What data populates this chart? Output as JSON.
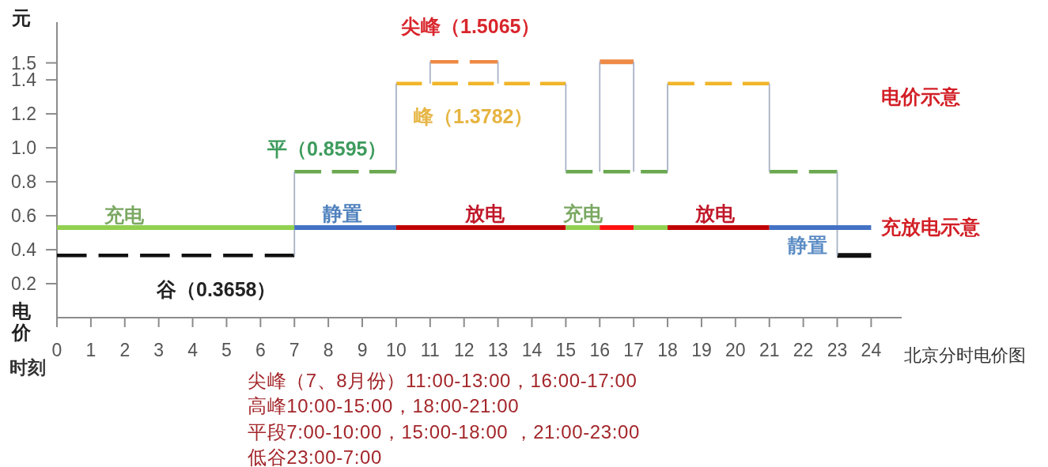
{
  "chart_data": {
    "type": "line",
    "title": "北京分时电价图",
    "xlabel": "时刻",
    "ylabel": "电价",
    "xlim": [
      0,
      24.9
    ],
    "xticks": [
      0,
      1,
      2,
      3,
      4,
      5,
      6,
      7,
      8,
      9,
      10,
      11,
      12,
      13,
      14,
      15,
      16,
      17,
      18,
      19,
      20,
      21,
      22,
      23,
      24
    ],
    "ylim": [
      0,
      1.74
    ],
    "yticks": [
      0.2,
      0.4,
      0.6,
      0.8,
      {
        "value": 1,
        "label": "1.0"
      },
      1.2,
      1.4,
      1.5
    ],
    "line_style": "dashed",
    "series": [
      {
        "color": "#111111",
        "x": [
          0,
          7
        ],
        "values": [
          0.3658,
          0.3658
        ]
      },
      {
        "color": "#111111",
        "line_style": "solid",
        "x": [
          23,
          24
        ],
        "values": [
          0.3658,
          0.3658
        ]
      },
      {
        "color": "#6aa84f",
        "x": [
          7,
          10
        ],
        "values": [
          0.8595,
          0.8595
        ]
      },
      {
        "color": "#6aa84f",
        "x": [
          15,
          18
        ],
        "values": [
          0.8595,
          0.8595
        ]
      },
      {
        "color": "#6aa84f",
        "x": [
          21,
          23
        ],
        "values": [
          0.8595,
          0.8595
        ]
      },
      {
        "color": "#f1b52a",
        "x": [
          10,
          15
        ],
        "values": [
          1.3782,
          1.3782
        ]
      },
      {
        "color": "#f1b52a",
        "x": [
          18,
          21
        ],
        "values": [
          1.3782,
          1.3782
        ]
      },
      {
        "color": "#ee8a45",
        "x": [
          11,
          13
        ],
        "values": [
          1.5065,
          1.5065
        ]
      },
      {
        "color": "#ee8a45",
        "line_style": "solid",
        "x": [
          16,
          17
        ],
        "values": [
          1.5065,
          1.5065
        ]
      },
      {
        "color": "#a9b2c6",
        "line_style": "solid",
        "x": [
          7,
          7
        ],
        "values": [
          0.3658,
          0.8595
        ]
      },
      {
        "color": "#a9b2c6",
        "line_style": "solid",
        "x": [
          10,
          10
        ],
        "values": [
          0.8595,
          1.3782
        ]
      },
      {
        "color": "#a9b2c6",
        "line_style": "solid",
        "x": [
          11,
          11
        ],
        "values": [
          1.3782,
          1.5065
        ]
      },
      {
        "color": "#a9b2c6",
        "line_style": "solid",
        "x": [
          13,
          13
        ],
        "values": [
          1.5065,
          1.3782
        ]
      },
      {
        "color": "#a9b2c6",
        "line_style": "solid",
        "x": [
          15,
          15
        ],
        "values": [
          1.3782,
          0.8595
        ]
      },
      {
        "color": "#a9b2c6",
        "line_style": "solid",
        "x": [
          16,
          16
        ],
        "values": [
          0.8595,
          1.5065
        ]
      },
      {
        "color": "#a9b2c6",
        "line_style": "solid",
        "x": [
          17,
          17
        ],
        "values": [
          1.5065,
          0.8595
        ]
      },
      {
        "color": "#a9b2c6",
        "line_style": "solid",
        "x": [
          18,
          18
        ],
        "values": [
          0.8595,
          1.3782
        ]
      },
      {
        "color": "#a9b2c6",
        "line_style": "solid",
        "x": [
          21,
          21
        ],
        "values": [
          1.3782,
          0.8595
        ]
      },
      {
        "color": "#a9b2c6",
        "line_style": "solid",
        "x": [
          23,
          23
        ],
        "values": [
          0.8595,
          0.3658
        ]
      },
      {
        "color": "#92d050",
        "line_style": "solid",
        "x": [
          0,
          7
        ],
        "values": [
          0.53,
          0.53
        ]
      },
      {
        "color": "#4472c4",
        "line_style": "solid",
        "x": [
          7,
          10
        ],
        "values": [
          0.53,
          0.53
        ]
      },
      {
        "color": "#c00000",
        "line_style": "solid",
        "x": [
          10,
          15
        ],
        "values": [
          0.53,
          0.53
        ]
      },
      {
        "color": "#92d050",
        "line_style": "solid",
        "x": [
          15,
          16
        ],
        "values": [
          0.53,
          0.53
        ]
      },
      {
        "color": "#ff1010",
        "line_style": "solid",
        "x": [
          16,
          17
        ],
        "values": [
          0.53,
          0.53
        ]
      },
      {
        "color": "#92d050",
        "line_style": "solid",
        "x": [
          17,
          18
        ],
        "values": [
          0.53,
          0.53
        ]
      },
      {
        "color": "#c00000",
        "line_style": "solid",
        "x": [
          18,
          21
        ],
        "values": [
          0.53,
          0.53
        ]
      },
      {
        "color": "#4472c4",
        "line_style": "solid",
        "x": [
          21,
          24
        ],
        "values": [
          0.53,
          0.53
        ]
      }
    ],
    "annotations": [
      "元",
      "尖峰（1.5065）",
      "峰（1.3782）",
      "平（0.8595）",
      "谷（0.3658）",
      "充电",
      "静置",
      "放电",
      "充电",
      "放电",
      "静置",
      "电价示意",
      "充放电示意",
      "尖峰（7、8月份）11:00-13:00，16:00-17:00",
      "高峰10:00-15:00，18:00-21:00",
      "平段7:00-10:00，15:00-18:00 ，21:00-23:00",
      "低谷23:00-7:00"
    ]
  }
}
